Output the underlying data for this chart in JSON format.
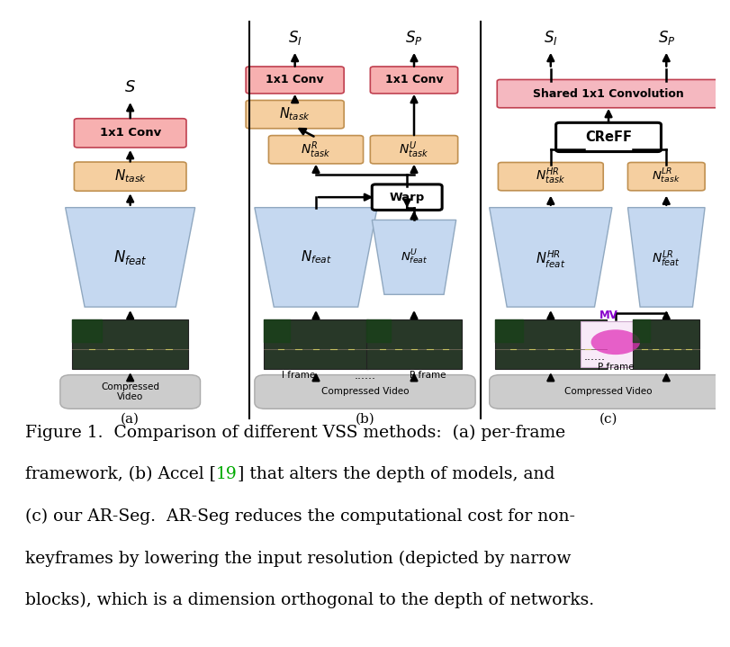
{
  "bg_color": "#ffffff",
  "colors": {
    "pink_box": "#f7b0b0",
    "orange_box": "#f5cfa0",
    "blue_trap": "#c5d8f0",
    "gray_box": "#cccccc",
    "pink_shared": "#f5b8c0",
    "mv_bg": "#f5e0f0",
    "mv_blob": "#e050c0"
  },
  "caption_line1": "Figure 1.  Comparison of different VSS methods:  (a) per-frame",
  "caption_line2a": "framework, (b) Accel [",
  "caption_line2b": "19",
  "caption_line2c": "] that alters the depth of models, and",
  "caption_line3": "(c) our AR-Seg.  AR-Seg reduces the computational cost for non-",
  "caption_line4": "keyframes by lowering the input resolution (depicted by narrow",
  "caption_line5": "blocks), which is a dimension orthogonal to the depth of networks."
}
